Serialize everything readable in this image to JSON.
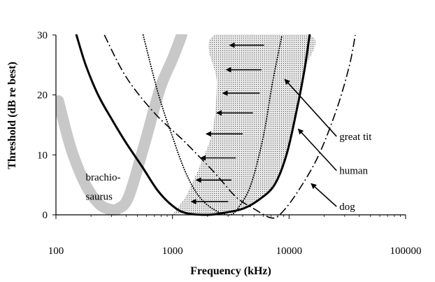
{
  "chart_data": {
    "type": "line",
    "xscale": "log",
    "xlim": [
      100,
      100000
    ],
    "ylim": [
      0,
      30
    ],
    "xlabel": "Frequency (kHz)",
    "ylabel": "Threshold (dB re best)",
    "xticks": [
      "100",
      "1000",
      "10000",
      "100000"
    ],
    "yticks": [
      "0",
      "10",
      "20",
      "30"
    ],
    "grid": false,
    "series": [
      {
        "name": "brachio-saurus",
        "style": "thick grey band",
        "color": "#c8c8c8",
        "points": [
          [
            105,
            19
          ],
          [
            135,
            11
          ],
          [
            180,
            5
          ],
          [
            230,
            2
          ],
          [
            280,
            1
          ],
          [
            340,
            1
          ],
          [
            420,
            3
          ],
          [
            560,
            11
          ],
          [
            780,
            21
          ],
          [
            1000,
            26
          ],
          [
            1200,
            30
          ]
        ]
      },
      {
        "name": "human",
        "style": "solid thick",
        "color": "#000000",
        "points": [
          [
            150,
            30
          ],
          [
            180,
            25
          ],
          [
            230,
            20
          ],
          [
            300,
            16
          ],
          [
            400,
            12
          ],
          [
            550,
            8
          ],
          [
            750,
            4
          ],
          [
            1000,
            1.5
          ],
          [
            1300,
            0.3
          ],
          [
            2000,
            0
          ],
          [
            2700,
            0.3
          ],
          [
            4000,
            1
          ],
          [
            5500,
            2.5
          ],
          [
            7500,
            5
          ],
          [
            9500,
            10
          ],
          [
            11500,
            17
          ],
          [
            13500,
            24
          ],
          [
            15000,
            30
          ]
        ]
      },
      {
        "name": "great tit",
        "style": "dotted",
        "color": "#000000",
        "points": [
          [
            560,
            30
          ],
          [
            760,
            20
          ],
          [
            1000,
            13
          ],
          [
            1300,
            7
          ],
          [
            1700,
            3
          ],
          [
            2300,
            0.8
          ],
          [
            3100,
            0
          ],
          [
            3700,
            1.3
          ],
          [
            4700,
            5
          ],
          [
            6000,
            13
          ],
          [
            7200,
            22
          ],
          [
            8700,
            30
          ]
        ]
      },
      {
        "name": "dog",
        "style": "dash-dot",
        "color": "#000000",
        "points": [
          [
            260,
            30
          ],
          [
            400,
            23
          ],
          [
            700,
            17
          ],
          [
            1300,
            12
          ],
          [
            2300,
            7
          ],
          [
            3500,
            3
          ],
          [
            5000,
            1
          ],
          [
            7000,
            -0.5
          ],
          [
            8500,
            0.2
          ],
          [
            12000,
            4
          ],
          [
            18000,
            10
          ],
          [
            26000,
            18
          ],
          [
            33000,
            25
          ],
          [
            37000,
            30
          ]
        ]
      }
    ],
    "shaded_region": {
      "description": "dotted fill between great tit and human thresholds",
      "fill": "#e0e0e0",
      "points": [
        [
          1000,
          0
        ],
        [
          1300,
          0.3
        ],
        [
          2000,
          0
        ],
        [
          2700,
          0.3
        ],
        [
          4000,
          1
        ],
        [
          5500,
          2.5
        ],
        [
          7500,
          5
        ],
        [
          9500,
          10
        ],
        [
          11500,
          17
        ],
        [
          13500,
          24
        ],
        [
          15000,
          30
        ],
        [
          2300,
          30
        ],
        [
          2400,
          22
        ],
        [
          2200,
          14
        ],
        [
          1700,
          8
        ],
        [
          1300,
          3
        ]
      ]
    },
    "arrows": [
      {
        "y": 28.3,
        "x_from": 6100,
        "x_to": 3100
      },
      {
        "y": 24.2,
        "x_from": 5800,
        "x_to": 2900
      },
      {
        "y": 20.3,
        "x_from": 5600,
        "x_to": 2700
      },
      {
        "y": 17.0,
        "x_from": 4900,
        "x_to": 2400
      },
      {
        "y": 13.5,
        "x_from": 4000,
        "x_to": 1950
      },
      {
        "y": 9.5,
        "x_from": 3500,
        "x_to": 1750
      },
      {
        "y": 5.8,
        "x_from": 3200,
        "x_to": 1600
      },
      {
        "y": 2.2,
        "x_from": 3000,
        "x_to": 1450
      }
    ],
    "annotations": [
      {
        "label": "brachio-",
        "x": 180,
        "y": 5.7,
        "color": "#000000"
      },
      {
        "label": "saurus",
        "x": 180,
        "y": 2.5,
        "color": "#000000"
      },
      {
        "label": "great tit",
        "x": 27000,
        "y": 12.5,
        "color": "#000000",
        "pointer_to": [
          9200,
          22.6
        ]
      },
      {
        "label": "human",
        "x": 27000,
        "y": 6.8,
        "color": "#000000",
        "pointer_to": [
          12000,
          14.3
        ]
      },
      {
        "label": "dog",
        "x": 27000,
        "y": 0.8,
        "color": "#000000",
        "pointer_to": [
          15500,
          5.2
        ]
      }
    ]
  }
}
